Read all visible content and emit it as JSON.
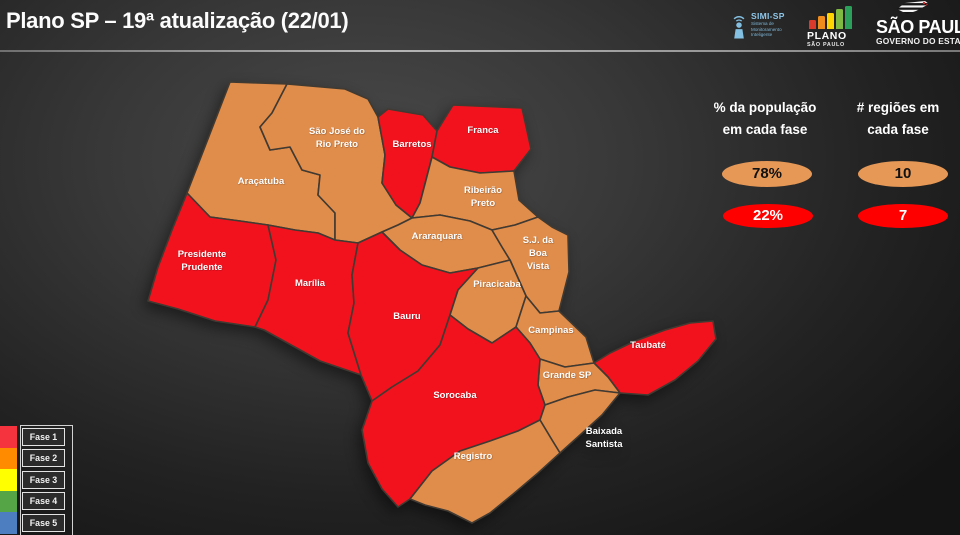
{
  "title_bar": {
    "title": "Plano SP – 19ª atualização (22/01)"
  },
  "logos": {
    "simi": {
      "name": "SIMI-SP",
      "sub_lines": [
        "Sistema de",
        "Monitoramento",
        "Inteligente"
      ]
    },
    "plano": {
      "line1": "PLANO",
      "line2": "SÃO PAULO",
      "bar_colors": [
        "#d93a2b",
        "#f08c1e",
        "#ffd400",
        "#7fba43",
        "#2ba05a"
      ]
    },
    "governo": {
      "line1": "SÃO PAULO",
      "line2": "GOVERNO DO ESTADO"
    }
  },
  "stats": {
    "columns": [
      {
        "header_lines": [
          "% da população",
          "em cada fase"
        ],
        "values": [
          {
            "text": "78%",
            "bg": "#e69857",
            "fg": "#111111"
          },
          {
            "text": "22%",
            "bg": "#ff0000",
            "fg": "#ffffff"
          }
        ]
      },
      {
        "header_lines": [
          "# regiões em",
          "cada fase"
        ],
        "values": [
          {
            "text": "10",
            "bg": "#e69857",
            "fg": "#111111"
          },
          {
            "text": "7",
            "bg": "#ff0000",
            "fg": "#ffffff"
          }
        ]
      }
    ]
  },
  "legend": {
    "items": [
      {
        "label": "Fase 1",
        "color": "#f5333f"
      },
      {
        "label": "Fase 2",
        "color": "#ff8c00"
      },
      {
        "label": "Fase 3",
        "color": "#ffff00"
      },
      {
        "label": "Fase 4",
        "color": "#55a546"
      },
      {
        "label": "Fase 5",
        "color": "#4d7ebf"
      }
    ]
  },
  "map": {
    "phase_colors": {
      "1": "#f2121e",
      "2": "#e08c4a"
    },
    "regions": [
      {
        "id": "sjrp",
        "label_lines": [
          "São José do",
          "Rio Preto"
        ],
        "phase": 2
      },
      {
        "id": "aracatuba",
        "label_lines": [
          "Araçatuba"
        ],
        "phase": 2
      },
      {
        "id": "barretos",
        "label_lines": [
          "Barretos"
        ],
        "phase": 1
      },
      {
        "id": "franca",
        "label_lines": [
          "Franca"
        ],
        "phase": 1
      },
      {
        "id": "ribeirao",
        "label_lines": [
          "Ribeirão",
          "Preto"
        ],
        "phase": 2
      },
      {
        "id": "araraquara",
        "label_lines": [
          "Araraquara"
        ],
        "phase": 2
      },
      {
        "id": "sjbv",
        "label_lines": [
          "S.J. da",
          "Boa",
          "Vista"
        ],
        "phase": 2
      },
      {
        "id": "pprudente",
        "label_lines": [
          "Presidente",
          "Prudente"
        ],
        "phase": 1
      },
      {
        "id": "marilia",
        "label_lines": [
          "Marília"
        ],
        "phase": 1
      },
      {
        "id": "bauru",
        "label_lines": [
          "Bauru"
        ],
        "phase": 1
      },
      {
        "id": "piracicaba",
        "label_lines": [
          "Piracicaba"
        ],
        "phase": 2
      },
      {
        "id": "campinas",
        "label_lines": [
          "Campinas"
        ],
        "phase": 2
      },
      {
        "id": "taubate",
        "label_lines": [
          "Taubaté"
        ],
        "phase": 1
      },
      {
        "id": "grandesp",
        "label_lines": [
          "Grande SP"
        ],
        "phase": 2
      },
      {
        "id": "sorocaba",
        "label_lines": [
          "Sorocaba"
        ],
        "phase": 1
      },
      {
        "id": "baixada",
        "label_lines": [
          "Baixada",
          "Santista"
        ],
        "phase": 2,
        "label_outside": true
      },
      {
        "id": "registro",
        "label_lines": [
          "Registro"
        ],
        "phase": 2
      }
    ]
  }
}
